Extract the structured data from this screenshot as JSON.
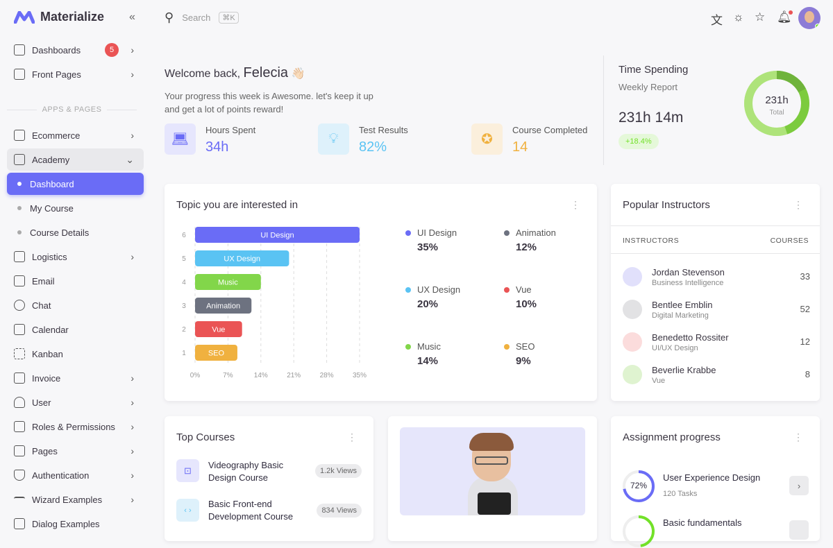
{
  "app": {
    "name": "Materialize"
  },
  "sidebar": {
    "items": [
      {
        "label": "Dashboards",
        "badge": "5"
      },
      {
        "label": "Front Pages"
      }
    ],
    "section": "APPS & PAGES",
    "apps": [
      {
        "label": "Ecommerce"
      },
      {
        "label": "Academy"
      },
      {
        "label": "Dashboard"
      },
      {
        "label": "My Course"
      },
      {
        "label": "Course Details"
      },
      {
        "label": "Logistics"
      },
      {
        "label": "Email"
      },
      {
        "label": "Chat"
      },
      {
        "label": "Calendar"
      },
      {
        "label": "Kanban"
      },
      {
        "label": "Invoice"
      },
      {
        "label": "User"
      },
      {
        "label": "Roles & Permissions"
      },
      {
        "label": "Pages"
      },
      {
        "label": "Authentication"
      },
      {
        "label": "Wizard Examples"
      },
      {
        "label": "Dialog Examples"
      }
    ]
  },
  "topbar": {
    "search_placeholder": "Search",
    "shortcut": "⌘K"
  },
  "welcome": {
    "greeting": "Welcome back,",
    "name": "Felecia",
    "emoji": "👋🏻",
    "line1": "Your progress this week is Awesome. let's keep it up",
    "line2": "and get a lot of points reward!",
    "stats": [
      {
        "label": "Hours Spent",
        "value": "34h",
        "color": "#6a6cf6"
      },
      {
        "label": "Test Results",
        "value": "82%",
        "color": "#5ac3f3"
      },
      {
        "label": "Course Completed",
        "value": "14",
        "color": "#f0b13f"
      }
    ]
  },
  "time": {
    "title": "Time Spending",
    "subtitle": "Weekly Report",
    "value": "231h 14m",
    "change": "+18.4%",
    "donut_value": "231h",
    "donut_label": "Total"
  },
  "topics": {
    "title": "Topic you are interested in"
  },
  "chart_data": {
    "type": "bar",
    "orientation": "horizontal",
    "categories": [
      "UI Design",
      "UX Design",
      "Music",
      "Animation",
      "Vue",
      "SEO"
    ],
    "values": [
      35,
      20,
      14,
      12,
      10,
      9
    ],
    "colors": [
      "#6a6cf6",
      "#5ac3f3",
      "#82d64a",
      "#6d7280",
      "#ea5455",
      "#f0b13f"
    ],
    "y_ticks": [
      "6",
      "5",
      "4",
      "3",
      "2",
      "1"
    ],
    "x_ticks": [
      "0%",
      "7%",
      "14%",
      "21%",
      "28%",
      "35%"
    ],
    "xlim": [
      0,
      35
    ],
    "legend": [
      {
        "name": "UI Design",
        "pct": "35%"
      },
      {
        "name": "Animation",
        "pct": "12%"
      },
      {
        "name": "UX Design",
        "pct": "20%"
      },
      {
        "name": "Vue",
        "pct": "10%"
      },
      {
        "name": "Music",
        "pct": "14%"
      },
      {
        "name": "SEO",
        "pct": "9%"
      }
    ]
  },
  "instructors": {
    "title": "Popular Instructors",
    "col1": "INSTRUCTORS",
    "col2": "COURSES",
    "rows": [
      {
        "name": "Jordan Stevenson",
        "role": "Business Intelligence",
        "courses": "33"
      },
      {
        "name": "Bentlee Emblin",
        "role": "Digital Marketing",
        "courses": "52"
      },
      {
        "name": "Benedetto Rossiter",
        "role": "UI/UX Design",
        "courses": "12"
      },
      {
        "name": "Beverlie Krabbe",
        "role": "Vue",
        "courses": "8"
      }
    ]
  },
  "courses": {
    "title": "Top Courses",
    "rows": [
      {
        "l1": "Videography Basic",
        "l2": "Design Course",
        "views": "1.2k Views"
      },
      {
        "l1": "Basic Front-end",
        "l2": "Development Course",
        "views": "834 Views"
      }
    ]
  },
  "assignments": {
    "title": "Assignment progress",
    "rows": [
      {
        "name": "User Experience Design",
        "tasks": "120 Tasks",
        "pct": "72%",
        "value": 72
      },
      {
        "name": "Basic fundamentals",
        "value": 48
      }
    ]
  }
}
